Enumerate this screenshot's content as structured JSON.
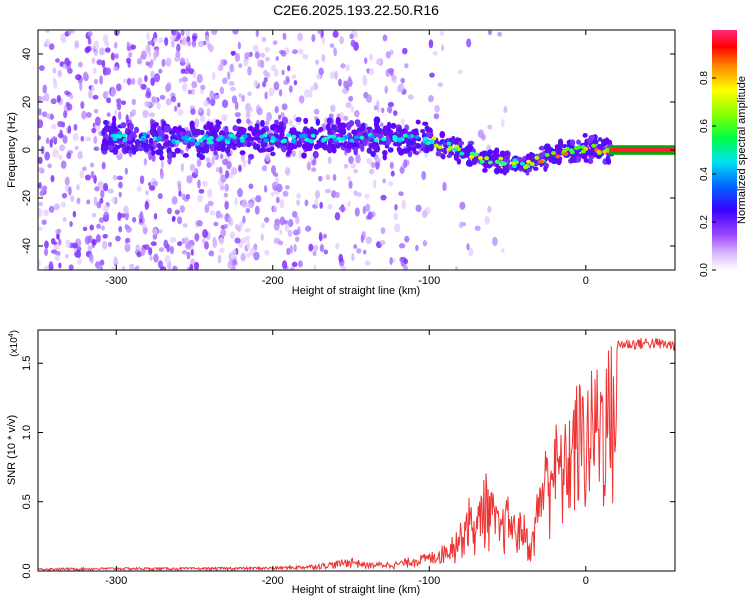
{
  "chart_data": [
    {
      "type": "heatmap",
      "title": "C2E6.2025.193.22.50.R16",
      "xlabel": "Height of straight line (km)",
      "ylabel": "Frequency (Hz)",
      "xlim": [
        -350,
        57
      ],
      "ylim": [
        -50,
        50
      ],
      "xticks": [
        -300,
        -200,
        -100,
        0
      ],
      "yticks": [
        -40,
        -20,
        0,
        20,
        40
      ],
      "colorbar": {
        "label": "Normalized spectral amplitude",
        "ticks": [
          0.0,
          0.2,
          0.4,
          0.6,
          0.8
        ],
        "range": [
          0,
          1
        ]
      },
      "ridge": {
        "x": [
          -305,
          -280,
          -250,
          -220,
          -200,
          -180,
          -160,
          -140,
          -120,
          -100,
          -90,
          -80,
          -70,
          -60,
          -50,
          -40,
          -35,
          -30,
          -20,
          -10,
          0,
          10,
          20,
          57
        ],
        "y": [
          6,
          5,
          4,
          5,
          5,
          5,
          5,
          5,
          5,
          4,
          2,
          0,
          -3,
          -4,
          -5,
          -6,
          -5,
          -4,
          -2,
          0,
          1,
          0,
          0,
          0
        ]
      },
      "grid": false
    },
    {
      "type": "line",
      "xlabel": "Height of straight line (km)",
      "ylabel": "SNR (10 * v/v)",
      "scale_label": "(x10",
      "scale_exp": "4",
      "xlim": [
        -350,
        57
      ],
      "ylim": [
        0,
        17400
      ],
      "xticks": [
        -300,
        -200,
        -100,
        0
      ],
      "yticks": [
        0,
        5000,
        10000,
        15000
      ],
      "ytick_labels": [
        "0.0",
        "0.5",
        "1.0",
        "1.5"
      ],
      "series": [
        {
          "color": "#ee3333",
          "envelope_x": [
            -350,
            -300,
            -250,
            -200,
            -180,
            -160,
            -150,
            -140,
            -120,
            -110,
            -100,
            -90,
            -80,
            -75,
            -70,
            -65,
            -60,
            -55,
            -50,
            -45,
            -40,
            -35,
            -30,
            -25,
            -20,
            -15,
            -10,
            -5,
            0,
            5,
            10,
            15,
            20,
            30,
            40,
            57
          ],
          "envelope_y": [
            200,
            250,
            250,
            300,
            400,
            700,
            1000,
            600,
            700,
            1100,
            1300,
            2000,
            3500,
            5500,
            4000,
            7500,
            6000,
            4000,
            5500,
            4000,
            4500,
            2000,
            7000,
            9500,
            11000,
            10000,
            12000,
            14000,
            13500,
            15000,
            15500,
            16500,
            16800,
            16800,
            16900,
            16700
          ]
        }
      ],
      "grid": false
    }
  ]
}
